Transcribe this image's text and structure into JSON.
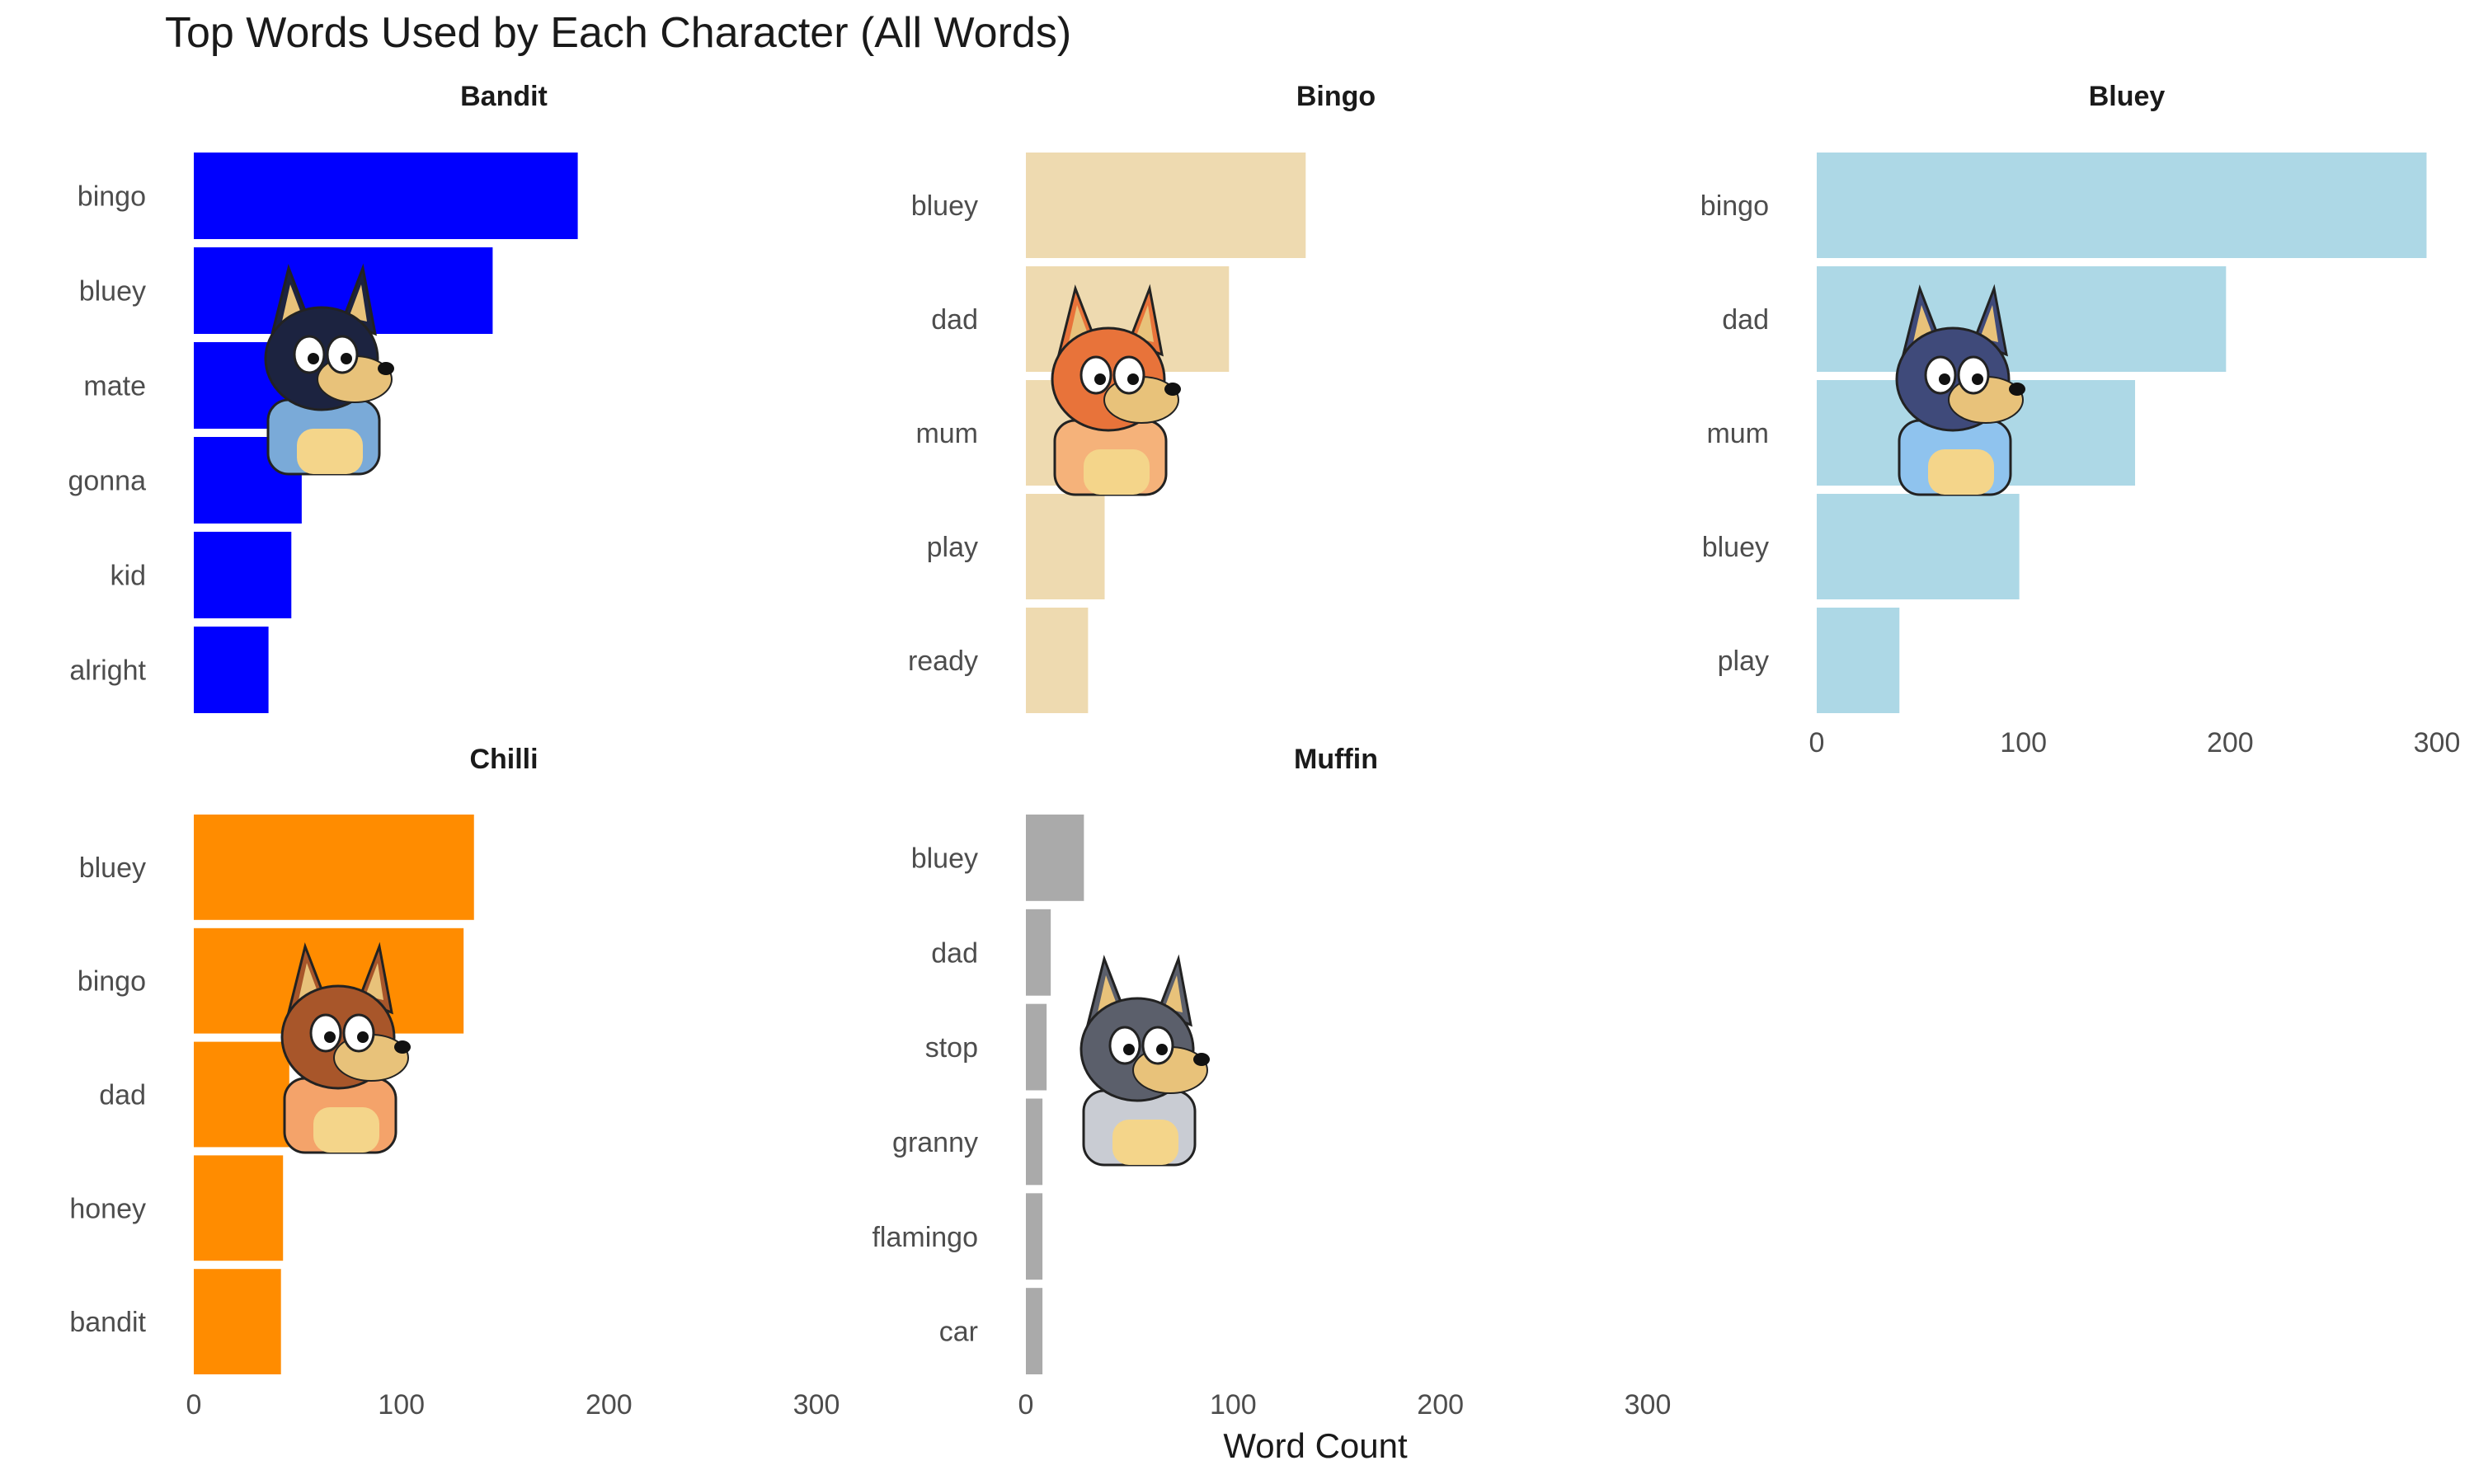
{
  "title": "Top Words Used by Each Character (All Words)",
  "xlabel": "Word Count",
  "chart_data": {
    "type": "bar",
    "title": "Top Words Used by Each Character (All Words)",
    "xlabel": "Word Count",
    "ylabel": "",
    "orientation": "horizontal",
    "xlim": [
      0,
      300
    ],
    "x_ticks": [
      "0",
      "100",
      "200",
      "300"
    ],
    "grid": false,
    "panels": [
      {
        "name": "Bandit",
        "color": "#0000FF",
        "character_image": "bandit-character",
        "categories": [
          "bingo",
          "bluey",
          "mate",
          "gonna",
          "kid",
          "alright"
        ],
        "values": [
          185,
          144,
          76,
          52,
          47,
          36
        ]
      },
      {
        "name": "Bingo",
        "color": "#EEDAB0",
        "character_image": "bingo-character",
        "categories": [
          "bluey",
          "dad",
          "mum",
          "play",
          "ready"
        ],
        "values": [
          135,
          98,
          47,
          38,
          30
        ]
      },
      {
        "name": "Bluey",
        "color": "#ADD8E6",
        "character_image": "bluey-character",
        "categories": [
          "bingo",
          "dad",
          "mum",
          "bluey",
          "play"
        ],
        "values": [
          295,
          198,
          154,
          98,
          40
        ]
      },
      {
        "name": "Chilli",
        "color": "#FF8C00",
        "character_image": "chilli-character",
        "categories": [
          "bluey",
          "bingo",
          "dad",
          "honey",
          "bandit"
        ],
        "values": [
          135,
          130,
          46,
          43,
          42
        ]
      },
      {
        "name": "Muffin",
        "color": "#AAAAAA",
        "character_image": "muffin-character",
        "categories": [
          "bluey",
          "dad",
          "stop",
          "granny",
          "flamingo",
          "car"
        ],
        "values": [
          28,
          12,
          10,
          8,
          8,
          8
        ]
      }
    ]
  }
}
